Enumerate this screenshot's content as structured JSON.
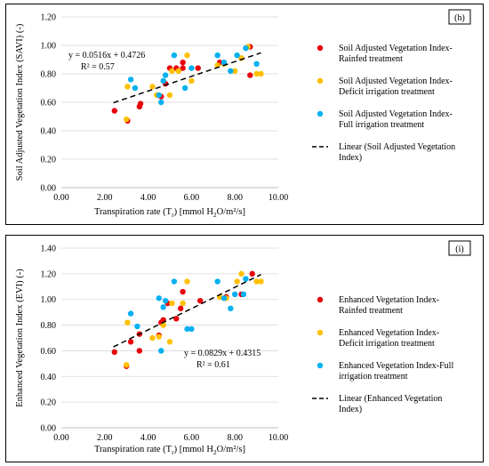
{
  "colors": {
    "rainfed": "#e8000b",
    "deficit": "#ffc000",
    "full": "#00b0f0",
    "axis": "#000000",
    "grid": "#d9d9d9",
    "frame": "#000000"
  },
  "chart_data": [
    {
      "id": "h",
      "type": "scatter",
      "panel_label": "(h)",
      "xlabel": "Transpiration rate (T",
      "xlabel_sub": "r",
      "xlabel_rest": ") [mmol H",
      "xlabel_sub2": "2",
      "xlabel_end": "O/m²/s]",
      "ylabel": "Soil Adjusted Vegetation Index (SAVI) (-)",
      "xlim": [
        0,
        10
      ],
      "ylim": [
        0,
        1.2
      ],
      "xticks": [
        "0.00",
        "2.00",
        "4.00",
        "6.00",
        "8.00",
        "10.00"
      ],
      "yticks": [
        "0.00",
        "0.20",
        "0.40",
        "0.60",
        "0.80",
        "1.00",
        "1.20"
      ],
      "grid": true,
      "equation": "y = 0.0516x + 0.4726",
      "r2": "R² = 0.57",
      "trendline": {
        "slope": 0.0516,
        "intercept": 0.4726,
        "x_range": [
          2.4,
          9.2
        ]
      },
      "legend": {
        "placement": "right",
        "entries": [
          {
            "series": "rainfed",
            "lines": [
              "Soil Adjusted Vegetation Index-",
              "Rainfed treatment"
            ]
          },
          {
            "series": "deficit",
            "lines": [
              "Soil Adjusted Vegetation Index-",
              "Deficit irrigation treatment"
            ]
          },
          {
            "series": "full",
            "lines": [
              "Soil Adjusted Vegetation Index-",
              "Full irrigation treatment"
            ]
          },
          {
            "series": "linear",
            "lines": [
              "Linear (Soil Adjusted Vegetation",
              "Index)"
            ]
          }
        ]
      },
      "series": [
        {
          "key": "rainfed",
          "points": [
            [
              2.45,
              0.54
            ],
            [
              3.05,
              0.47
            ],
            [
              3.6,
              0.57
            ],
            [
              3.65,
              0.59
            ],
            [
              4.6,
              0.64
            ],
            [
              4.8,
              0.73
            ],
            [
              5.0,
              0.84
            ],
            [
              5.3,
              0.84
            ],
            [
              5.6,
              0.84
            ],
            [
              5.6,
              0.88
            ],
            [
              6.3,
              0.84
            ],
            [
              7.3,
              0.88
            ],
            [
              8.3,
              0.91
            ],
            [
              8.7,
              0.99
            ],
            [
              8.7,
              0.79
            ]
          ]
        },
        {
          "key": "deficit",
          "points": [
            [
              3.0,
              0.48
            ],
            [
              3.05,
              0.71
            ],
            [
              4.2,
              0.71
            ],
            [
              4.4,
              0.65
            ],
            [
              4.7,
              0.75
            ],
            [
              5.0,
              0.65
            ],
            [
              5.1,
              0.82
            ],
            [
              5.4,
              0.82
            ],
            [
              5.8,
              0.93
            ],
            [
              6.0,
              0.75
            ],
            [
              7.2,
              0.86
            ],
            [
              7.5,
              0.87
            ],
            [
              8.0,
              0.82
            ],
            [
              8.3,
              0.91
            ],
            [
              8.6,
              0.99
            ],
            [
              9.0,
              0.8
            ],
            [
              9.2,
              0.8
            ]
          ]
        },
        {
          "key": "full",
          "points": [
            [
              3.2,
              0.76
            ],
            [
              3.4,
              0.7
            ],
            [
              4.5,
              0.65
            ],
            [
              4.6,
              0.6
            ],
            [
              4.7,
              0.75
            ],
            [
              4.8,
              0.79
            ],
            [
              5.2,
              0.93
            ],
            [
              5.7,
              0.7
            ],
            [
              6.0,
              0.84
            ],
            [
              7.2,
              0.93
            ],
            [
              7.5,
              0.88
            ],
            [
              7.8,
              0.82
            ],
            [
              8.1,
              0.93
            ],
            [
              8.5,
              0.98
            ],
            [
              9.0,
              0.87
            ]
          ]
        }
      ]
    },
    {
      "id": "i",
      "type": "scatter",
      "panel_label": "(i)",
      "xlabel": "Transpiration rate (T",
      "xlabel_sub": "r",
      "xlabel_rest": ") [mmol H",
      "xlabel_sub2": "2",
      "xlabel_end": "O/m²/s]",
      "ylabel": "Enhanced Vegetation Index (EVI) (-)",
      "xlim": [
        0,
        10
      ],
      "ylim": [
        0,
        1.4
      ],
      "xticks": [
        "0.00",
        "2.00",
        "4.00",
        "6.00",
        "8.00",
        "10.00"
      ],
      "yticks": [
        "0.00",
        "0.20",
        "0.40",
        "0.60",
        "0.80",
        "1.00",
        "1.20",
        "1.40"
      ],
      "grid": true,
      "equation": "y = 0.0829x + 0.4315",
      "r2": "R² = 0.61",
      "trendline": {
        "slope": 0.0829,
        "intercept": 0.4315,
        "x_range": [
          2.4,
          9.2
        ]
      },
      "legend": {
        "placement": "right",
        "entries": [
          {
            "series": "rainfed",
            "lines": [
              "Enhanced Vegetation Index-",
              "Rainfed treatment"
            ]
          },
          {
            "series": "deficit",
            "lines": [
              "Enhanced Vegetation Index-",
              "Deficit irrigation treatment"
            ]
          },
          {
            "series": "full",
            "lines": [
              "Enhanced Vegetation Index-Full",
              "irrigation treatment"
            ]
          },
          {
            "series": "linear",
            "lines": [
              "Linear (Enhanced Vegetation",
              "Index)"
            ]
          }
        ]
      },
      "series": [
        {
          "key": "rainfed",
          "points": [
            [
              2.45,
              0.59
            ],
            [
              3.0,
              0.48
            ],
            [
              3.2,
              0.67
            ],
            [
              3.6,
              0.6
            ],
            [
              3.6,
              0.73
            ],
            [
              4.5,
              0.72
            ],
            [
              4.6,
              0.82
            ],
            [
              4.7,
              0.84
            ],
            [
              4.9,
              0.97
            ],
            [
              5.3,
              0.85
            ],
            [
              5.5,
              0.93
            ],
            [
              5.6,
              1.06
            ],
            [
              6.4,
              0.99
            ],
            [
              7.6,
              1.02
            ],
            [
              8.3,
              1.04
            ],
            [
              8.8,
              1.2
            ]
          ]
        },
        {
          "key": "deficit",
          "points": [
            [
              3.0,
              0.49
            ],
            [
              3.05,
              0.82
            ],
            [
              4.2,
              0.7
            ],
            [
              4.5,
              0.71
            ],
            [
              4.7,
              0.8
            ],
            [
              5.0,
              0.67
            ],
            [
              5.1,
              0.97
            ],
            [
              5.6,
              0.97
            ],
            [
              5.8,
              1.14
            ],
            [
              7.3,
              1.02
            ],
            [
              7.6,
              1.01
            ],
            [
              8.1,
              1.14
            ],
            [
              8.3,
              1.2
            ],
            [
              9.0,
              1.14
            ],
            [
              9.2,
              1.14
            ]
          ]
        },
        {
          "key": "full",
          "points": [
            [
              3.2,
              0.89
            ],
            [
              3.5,
              0.79
            ],
            [
              4.5,
              1.01
            ],
            [
              4.6,
              0.6
            ],
            [
              4.7,
              0.94
            ],
            [
              4.8,
              0.99
            ],
            [
              5.2,
              1.14
            ],
            [
              5.8,
              0.77
            ],
            [
              6.0,
              0.77
            ],
            [
              7.2,
              1.14
            ],
            [
              7.5,
              1.01
            ],
            [
              7.8,
              0.93
            ],
            [
              8.0,
              1.04
            ],
            [
              8.4,
              1.04
            ],
            [
              8.5,
              1.16
            ]
          ]
        }
      ]
    }
  ]
}
